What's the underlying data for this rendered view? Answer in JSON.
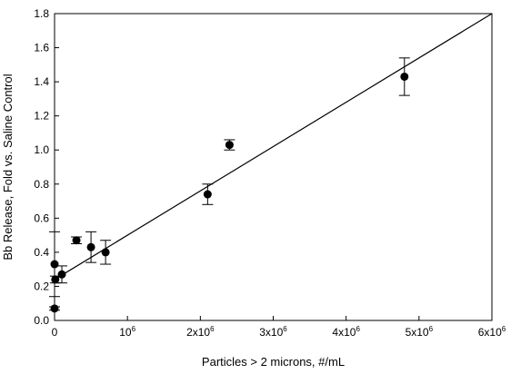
{
  "chart_data": {
    "type": "scatter",
    "xlabel": "Particles > 2 microns, #/mL",
    "ylabel": "Bb Release, Fold vs. Saline Control",
    "xlim": [
      0,
      6000000
    ],
    "ylim": [
      0,
      1.8
    ],
    "grid": false,
    "legend": "none",
    "x_ticks": [
      {
        "value": 0,
        "label": "0",
        "sup": ""
      },
      {
        "value": 1000000,
        "label": "10",
        "sup": "6"
      },
      {
        "value": 2000000,
        "label": "2x10",
        "sup": "6"
      },
      {
        "value": 3000000,
        "label": "3x10",
        "sup": "6"
      },
      {
        "value": 4000000,
        "label": "4x10",
        "sup": "6"
      },
      {
        "value": 5000000,
        "label": "5x10",
        "sup": "6"
      },
      {
        "value": 6000000,
        "label": "6x10",
        "sup": "6"
      }
    ],
    "y_ticks": [
      {
        "value": 0.0,
        "label": "0.0"
      },
      {
        "value": 0.2,
        "label": "0.2"
      },
      {
        "value": 0.4,
        "label": "0.4"
      },
      {
        "value": 0.6,
        "label": "0.6"
      },
      {
        "value": 0.8,
        "label": "0.8"
      },
      {
        "value": 1.0,
        "label": "1.0"
      },
      {
        "value": 1.2,
        "label": "1.2"
      },
      {
        "value": 1.4,
        "label": "1.4"
      },
      {
        "value": 1.6,
        "label": "1.6"
      },
      {
        "value": 1.8,
        "label": "1.8"
      }
    ],
    "series": [
      {
        "points": [
          {
            "x": 0,
            "y": 0.07,
            "err": 0.01
          },
          {
            "x": 0,
            "y": 0.33,
            "err": 0.19
          },
          {
            "x": 10000,
            "y": 0.24,
            "err": 0.02
          },
          {
            "x": 100000,
            "y": 0.27,
            "err": 0.05
          },
          {
            "x": 300000,
            "y": 0.47,
            "err": 0.02
          },
          {
            "x": 500000,
            "y": 0.43,
            "err": 0.09
          },
          {
            "x": 700000,
            "y": 0.4,
            "err": 0.07
          },
          {
            "x": 2100000,
            "y": 0.74,
            "err": 0.06
          },
          {
            "x": 2400000,
            "y": 1.03,
            "err": 0.03
          },
          {
            "x": 4800000,
            "y": 1.43,
            "err": 0.11
          }
        ]
      }
    ],
    "trendline": {
      "x0": 0,
      "y0": 0.24,
      "x1": 6000000,
      "y1": 1.8
    },
    "colors": {
      "marker": "#000000",
      "line": "#000000",
      "axis": "#000000"
    }
  }
}
